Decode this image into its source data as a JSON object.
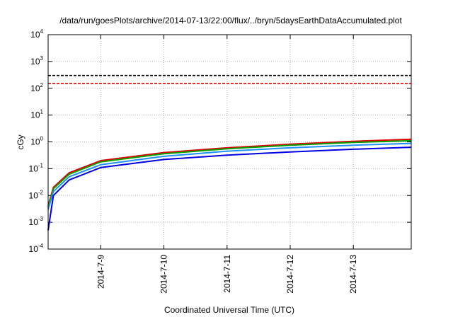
{
  "chart_data": {
    "type": "line",
    "title": "/data/run/goesPlots/archive/2014-07-13/22:00/flux/../bryn/5daysEarthDataAccumulated.plot",
    "xlabel": "Coordinated Universal Time (UTC)",
    "ylabel": "cGy",
    "y_scale": "log",
    "ylim": [
      0.0001,
      10000
    ],
    "xlim": [
      "2014-07-08T04:00",
      "2014-07-13T22:00"
    ],
    "x_ticks": [
      "2014-7-9",
      "2014-7-10",
      "2014-7-11",
      "2014-7-12",
      "2014-7-13"
    ],
    "y_ticks": [
      {
        "base": "10",
        "exp": "4"
      },
      {
        "base": "10",
        "exp": "3"
      },
      {
        "base": "10",
        "exp": "2"
      },
      {
        "base": "10",
        "exp": "1"
      },
      {
        "base": "10",
        "exp": "0"
      },
      {
        "base": "10",
        "exp": "-1"
      },
      {
        "base": "10",
        "exp": "-2"
      },
      {
        "base": "10",
        "exp": "-3"
      },
      {
        "base": "10",
        "exp": "-4"
      }
    ],
    "grid": true,
    "thresholds": [
      {
        "value": 300,
        "color": "#000000",
        "style": "dashed"
      },
      {
        "value": 150,
        "color": "#e00000",
        "style": "dashed"
      }
    ],
    "series": [
      {
        "color": "#e00000",
        "points": [
          [
            "2014-07-08T04:00",
            0.004
          ],
          [
            "2014-07-08T06:00",
            0.02
          ],
          [
            "2014-07-08T12:00",
            0.07
          ],
          [
            "2014-07-09T00:00",
            0.2
          ],
          [
            "2014-07-10T00:00",
            0.4
          ],
          [
            "2014-07-11T00:00",
            0.6
          ],
          [
            "2014-07-12T00:00",
            0.82
          ],
          [
            "2014-07-13T00:00",
            1.05
          ],
          [
            "2014-07-13T22:00",
            1.25
          ]
        ]
      },
      {
        "color": "#00a000",
        "points": [
          [
            "2014-07-08T04:00",
            0.0035
          ],
          [
            "2014-07-08T06:00",
            0.018
          ],
          [
            "2014-07-08T12:00",
            0.062
          ],
          [
            "2014-07-09T00:00",
            0.18
          ],
          [
            "2014-07-10T00:00",
            0.36
          ],
          [
            "2014-07-11T00:00",
            0.55
          ],
          [
            "2014-07-12T00:00",
            0.75
          ],
          [
            "2014-07-13T00:00",
            0.95
          ],
          [
            "2014-07-13T22:00",
            1.1
          ]
        ]
      },
      {
        "color": "#1e90ff",
        "points": [
          [
            "2014-07-08T04:00",
            0.003
          ],
          [
            "2014-07-08T06:00",
            0.014
          ],
          [
            "2014-07-08T12:00",
            0.05
          ],
          [
            "2014-07-09T00:00",
            0.14
          ],
          [
            "2014-07-10T00:00",
            0.29
          ],
          [
            "2014-07-11T00:00",
            0.45
          ],
          [
            "2014-07-12T00:00",
            0.6
          ],
          [
            "2014-07-13T00:00",
            0.75
          ],
          [
            "2014-07-13T22:00",
            0.88
          ]
        ]
      },
      {
        "color": "#0000e0",
        "points": [
          [
            "2014-07-08T04:00",
            0.0005
          ],
          [
            "2014-07-08T06:00",
            0.01
          ],
          [
            "2014-07-08T12:00",
            0.038
          ],
          [
            "2014-07-09T00:00",
            0.11
          ],
          [
            "2014-07-10T00:00",
            0.22
          ],
          [
            "2014-07-11T00:00",
            0.32
          ],
          [
            "2014-07-12T00:00",
            0.42
          ],
          [
            "2014-07-13T00:00",
            0.53
          ],
          [
            "2014-07-13T22:00",
            0.63
          ]
        ]
      }
    ]
  }
}
